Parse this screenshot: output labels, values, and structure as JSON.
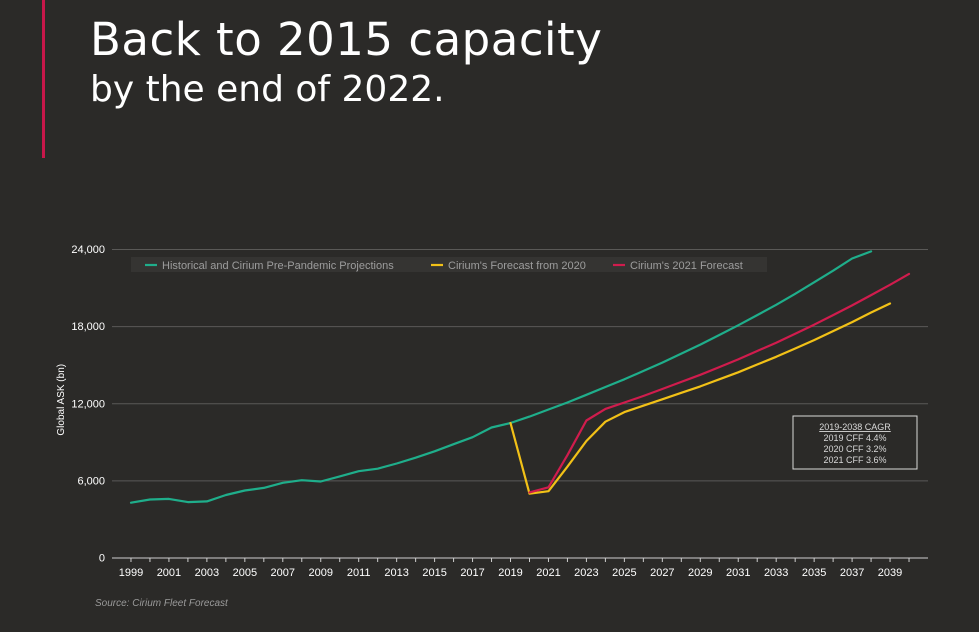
{
  "title_line1": "Back to 2015 capacity",
  "title_line2": "by the end of 2022.",
  "source": "Source: Cirium Fleet Forecast",
  "colors": {
    "background": "#2b2a28",
    "accent": "#c8174a",
    "grid": "#5a5957",
    "axis": "#cfcfcf",
    "text": "#ffffff"
  },
  "chart_data": {
    "type": "line",
    "title": "",
    "xlabel": "",
    "ylabel": "Global ASK (bn)",
    "xlim": [
      1998,
      2041
    ],
    "ylim": [
      0,
      24000
    ],
    "yticks": [
      "0",
      "6,000",
      "12,000",
      "18,000",
      "24,000"
    ],
    "ytick_values": [
      0,
      6000,
      12000,
      18000,
      24000
    ],
    "xticks": [
      "1999",
      "2001",
      "2003",
      "2005",
      "2007",
      "2009",
      "2011",
      "2013",
      "2015",
      "2017",
      "2019",
      "2021",
      "2023",
      "2025",
      "2027",
      "2029",
      "2031",
      "2033",
      "2035",
      "2037",
      "2039"
    ],
    "grid": "horizontal",
    "legend_position": "top",
    "series": [
      {
        "name": "Historical and Cirium Pre-Pandemic Projections",
        "color": "#1fae8b",
        "points": [
          [
            1999,
            4300
          ],
          [
            2000,
            4550
          ],
          [
            2001,
            4600
          ],
          [
            2002,
            4350
          ],
          [
            2003,
            4400
          ],
          [
            2004,
            4900
          ],
          [
            2005,
            5250
          ],
          [
            2006,
            5450
          ],
          [
            2007,
            5850
          ],
          [
            2008,
            6050
          ],
          [
            2009,
            5950
          ],
          [
            2010,
            6350
          ],
          [
            2011,
            6750
          ],
          [
            2012,
            6950
          ],
          [
            2013,
            7350
          ],
          [
            2014,
            7800
          ],
          [
            2015,
            8300
          ],
          [
            2016,
            8850
          ],
          [
            2017,
            9400
          ],
          [
            2018,
            10150
          ],
          [
            2019,
            10500
          ],
          [
            2020,
            11000
          ],
          [
            2021,
            11550
          ],
          [
            2022,
            12100
          ],
          [
            2023,
            12700
          ],
          [
            2024,
            13300
          ],
          [
            2025,
            13900
          ],
          [
            2026,
            14550
          ],
          [
            2027,
            15200
          ],
          [
            2028,
            15900
          ],
          [
            2029,
            16600
          ],
          [
            2030,
            17350
          ],
          [
            2031,
            18100
          ],
          [
            2032,
            18900
          ],
          [
            2033,
            19700
          ],
          [
            2034,
            20550
          ],
          [
            2035,
            21450
          ],
          [
            2036,
            22350
          ],
          [
            2037,
            23300
          ],
          [
            2038,
            23850
          ]
        ]
      },
      {
        "name": "Cirium's Forecast from 2020",
        "color": "#f2c117",
        "points": [
          [
            2019,
            10500
          ],
          [
            2020,
            5000
          ],
          [
            2021,
            5200
          ],
          [
            2022,
            7100
          ],
          [
            2023,
            9100
          ],
          [
            2024,
            10600
          ],
          [
            2025,
            11350
          ],
          [
            2026,
            11850
          ],
          [
            2027,
            12350
          ],
          [
            2028,
            12850
          ],
          [
            2029,
            13350
          ],
          [
            2030,
            13900
          ],
          [
            2031,
            14450
          ],
          [
            2032,
            15050
          ],
          [
            2033,
            15650
          ],
          [
            2034,
            16300
          ],
          [
            2035,
            16950
          ],
          [
            2036,
            17650
          ],
          [
            2037,
            18350
          ],
          [
            2038,
            19100
          ],
          [
            2039,
            19800
          ]
        ]
      },
      {
        "name": "Cirium's 2021 Forecast",
        "color": "#d01c4d",
        "points": [
          [
            2020,
            5100
          ],
          [
            2021,
            5500
          ],
          [
            2022,
            8000
          ],
          [
            2023,
            10700
          ],
          [
            2024,
            11600
          ],
          [
            2025,
            12100
          ],
          [
            2026,
            12600
          ],
          [
            2027,
            13150
          ],
          [
            2028,
            13700
          ],
          [
            2029,
            14250
          ],
          [
            2030,
            14850
          ],
          [
            2031,
            15450
          ],
          [
            2032,
            16100
          ],
          [
            2033,
            16750
          ],
          [
            2034,
            17450
          ],
          [
            2035,
            18150
          ],
          [
            2036,
            18900
          ],
          [
            2037,
            19650
          ],
          [
            2038,
            20450
          ],
          [
            2039,
            21250
          ],
          [
            2040,
            22100
          ]
        ]
      }
    ],
    "annotation": {
      "title": "2019-2038 CAGR",
      "lines": [
        "2019 CFF 4.4%",
        "2020 CFF 3.2%",
        "2021 CFF 3.6%"
      ]
    }
  }
}
